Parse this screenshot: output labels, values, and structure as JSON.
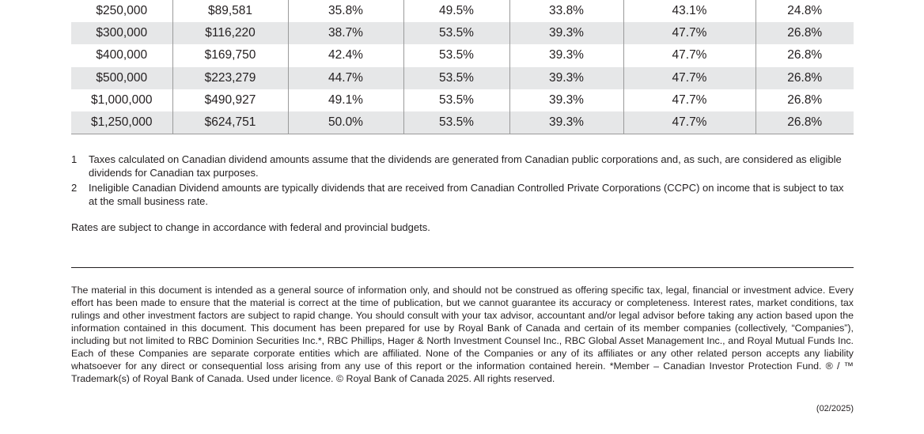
{
  "table": {
    "rows": [
      [
        "$250,000",
        "$89,581",
        "35.8%",
        "49.5%",
        "33.8%",
        "43.1%",
        "24.8%"
      ],
      [
        "$300,000",
        "$116,220",
        "38.7%",
        "53.5%",
        "39.3%",
        "47.7%",
        "26.8%"
      ],
      [
        "$400,000",
        "$169,750",
        "42.4%",
        "53.5%",
        "39.3%",
        "47.7%",
        "26.8%"
      ],
      [
        "$500,000",
        "$223,279",
        "44.7%",
        "53.5%",
        "39.3%",
        "47.7%",
        "26.8%"
      ],
      [
        "$1,000,000",
        "$490,927",
        "49.1%",
        "53.5%",
        "39.3%",
        "47.7%",
        "26.8%"
      ],
      [
        "$1,250,000",
        "$624,751",
        "50.0%",
        "53.5%",
        "39.3%",
        "47.7%",
        "26.8%"
      ]
    ]
  },
  "footnotes": [
    {
      "number": "1",
      "text": "Taxes calculated on Canadian dividend amounts assume that the dividends are generated from Canadian public corporations and, as such, are considered as eligible dividends for Canadian tax purposes."
    },
    {
      "number": "2",
      "text": "Ineligible Canadian Dividend amounts are typically dividends that are received from Canadian Controlled Private Corporations (CCPC) on income that is subject to tax at the small business rate."
    }
  ],
  "rates_note": "Rates are subject to change in accordance with federal and provincial budgets.",
  "disclaimer": "The material in this document is intended as a general source of information only, and should not be construed as offering specific tax, legal, financial or investment advice. Every effort has been made to ensure that the material is correct at the time of publication, but we cannot guarantee its accuracy or completeness. Interest rates, market conditions, tax rulings and other investment factors are subject to rapid change. You should consult with your tax advisor, accountant and/or legal advisor before taking any action based upon the information contained in this document. This document has been prepared for use by Royal Bank of Canada and certain of its member companies (collectively, “Companies”), including but not limited to RBC Dominion Securities Inc.*, RBC Phillips, Hager & North Investment Counsel Inc., RBC Global Asset Management Inc., and Royal Mutual Funds Inc. Each of these Companies are separate corporate entities which are affiliated. None of the Companies or any of its affiliates or any other related person accepts any liability whatsoever for any direct or consequential loss arising from any use of this report or the information contained herein. *Member – Canadian Investor Protection Fund. ® / ™ Trademark(s) of Royal Bank of Canada. Used under licence. © Royal Bank of Canada 2025. All rights reserved.",
  "date": "(02/2025)"
}
